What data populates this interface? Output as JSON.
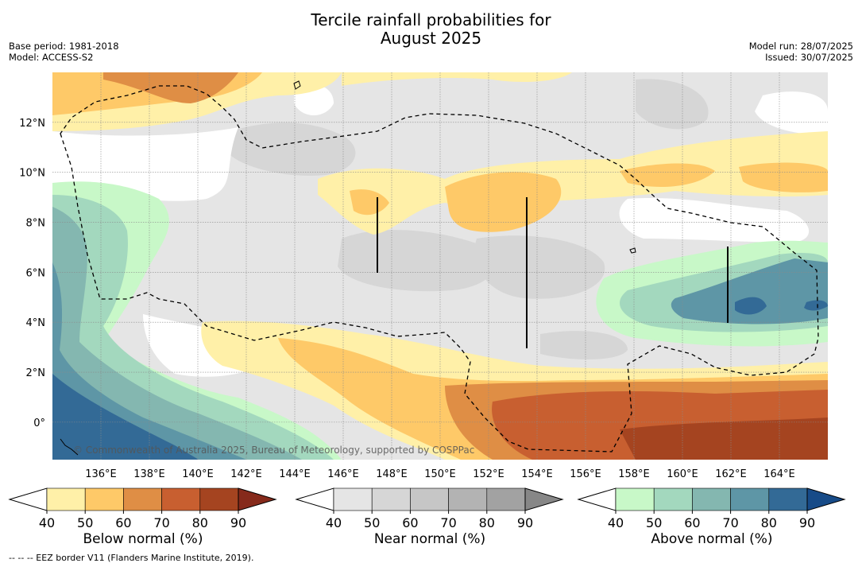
{
  "title_line1": "Tercile rainfall probabilities for",
  "title_line2": "August 2025",
  "base_period": "Base period: 1981-2018",
  "model": "Model: ACCESS-S2",
  "model_run": "Model run: 28/07/2025",
  "issued": "Issued: 30/07/2025",
  "copyright": "© Commonwealth of Australia 2025, Bureau of Meteorology, supported by COSPPac",
  "footnote": "-- -- -- EEZ border V11 (Flanders Marine Institute, 2019).",
  "lon_ticks": [
    "136°E",
    "138°E",
    "140°E",
    "142°E",
    "144°E",
    "146°E",
    "148°E",
    "150°E",
    "152°E",
    "154°E",
    "156°E",
    "158°E",
    "160°E",
    "162°E",
    "164°E"
  ],
  "lat_ticks": [
    "12°N",
    "10°N",
    "8°N",
    "6°N",
    "4°N",
    "2°N",
    "0°"
  ],
  "map_extents": {
    "lon_min": 134,
    "lon_max": 166,
    "lat_min": -1.5,
    "lat_max": 14
  },
  "colorbars": [
    {
      "name": "below",
      "title": "Below normal (%)",
      "ticks": [
        "40",
        "50",
        "60",
        "70",
        "80",
        "90"
      ],
      "colors": [
        "#ffffff",
        "#fff0a8",
        "#fec968",
        "#df8e45",
        "#c85f30",
        "#a54420",
        "#862a1b"
      ]
    },
    {
      "name": "near",
      "title": "Near normal (%)",
      "ticks": [
        "40",
        "50",
        "60",
        "70",
        "80",
        "90"
      ],
      "colors": [
        "#ffffff",
        "#e5e5e5",
        "#d6d6d6",
        "#c6c6c6",
        "#b3b3b3",
        "#a2a2a2",
        "#878787"
      ]
    },
    {
      "name": "above",
      "title": "Above normal (%)",
      "ticks": [
        "40",
        "50",
        "60",
        "70",
        "80",
        "90"
      ],
      "colors": [
        "#ffffff",
        "#c8f8c8",
        "#a3d8be",
        "#84b7b0",
        "#5e96a6",
        "#336a96",
        "#174b88"
      ]
    }
  ]
}
